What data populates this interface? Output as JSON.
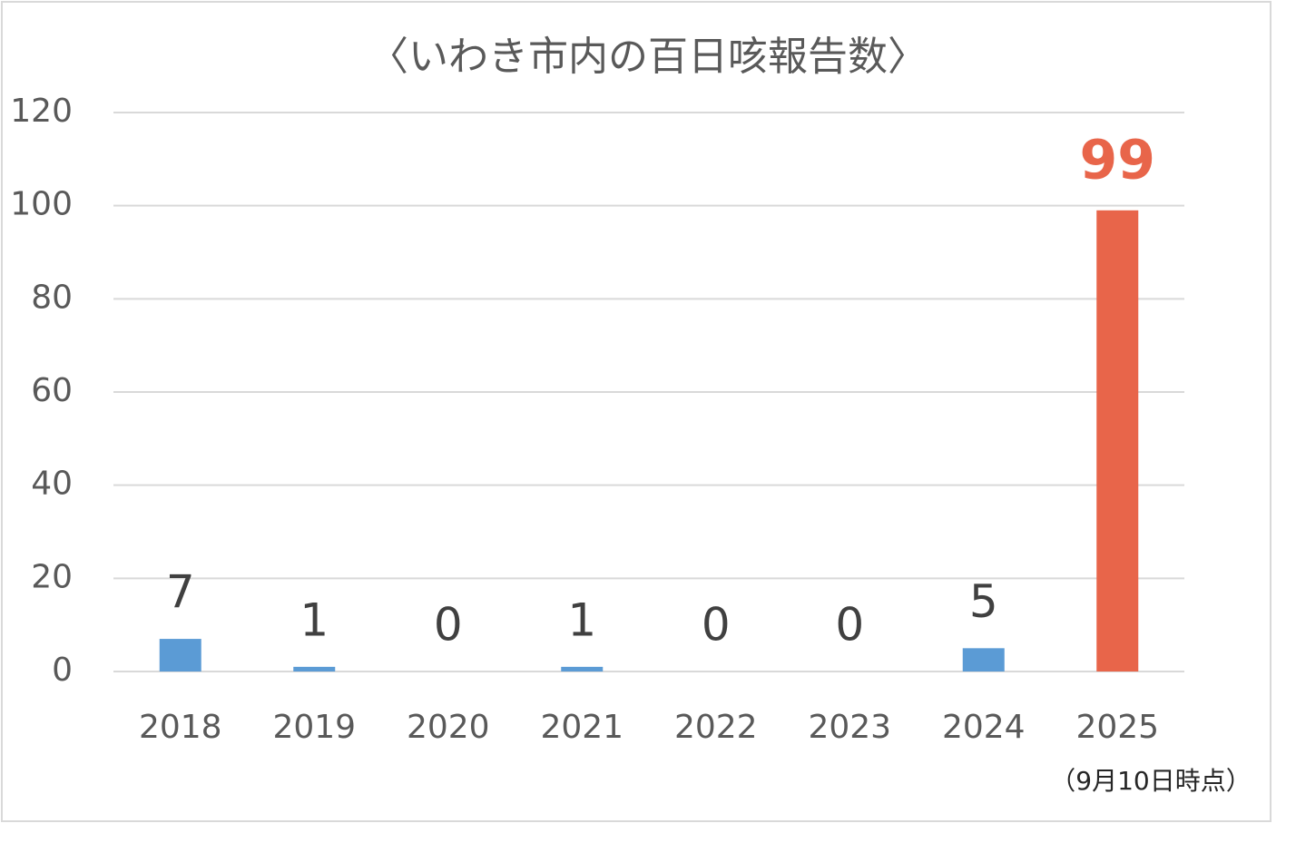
{
  "chart_data": {
    "type": "bar",
    "title": "〈いわき市内の百日咳報告数〉",
    "categories": [
      "2018",
      "2019",
      "2020",
      "2021",
      "2022",
      "2023",
      "2024",
      "2025"
    ],
    "values": [
      7,
      1,
      0,
      1,
      0,
      0,
      5,
      99
    ],
    "colors": [
      "#5b9bd5",
      "#5b9bd5",
      "#5b9bd5",
      "#5b9bd5",
      "#5b9bd5",
      "#5b9bd5",
      "#5b9bd5",
      "#e8654a"
    ],
    "label_colors": [
      "#404040",
      "#404040",
      "#404040",
      "#404040",
      "#404040",
      "#404040",
      "#404040",
      "#e8654a"
    ],
    "ylim": [
      0,
      120
    ],
    "yticks": [
      0,
      20,
      40,
      60,
      80,
      100,
      120
    ],
    "grid": true,
    "annotation": "（9月10日時点）"
  }
}
